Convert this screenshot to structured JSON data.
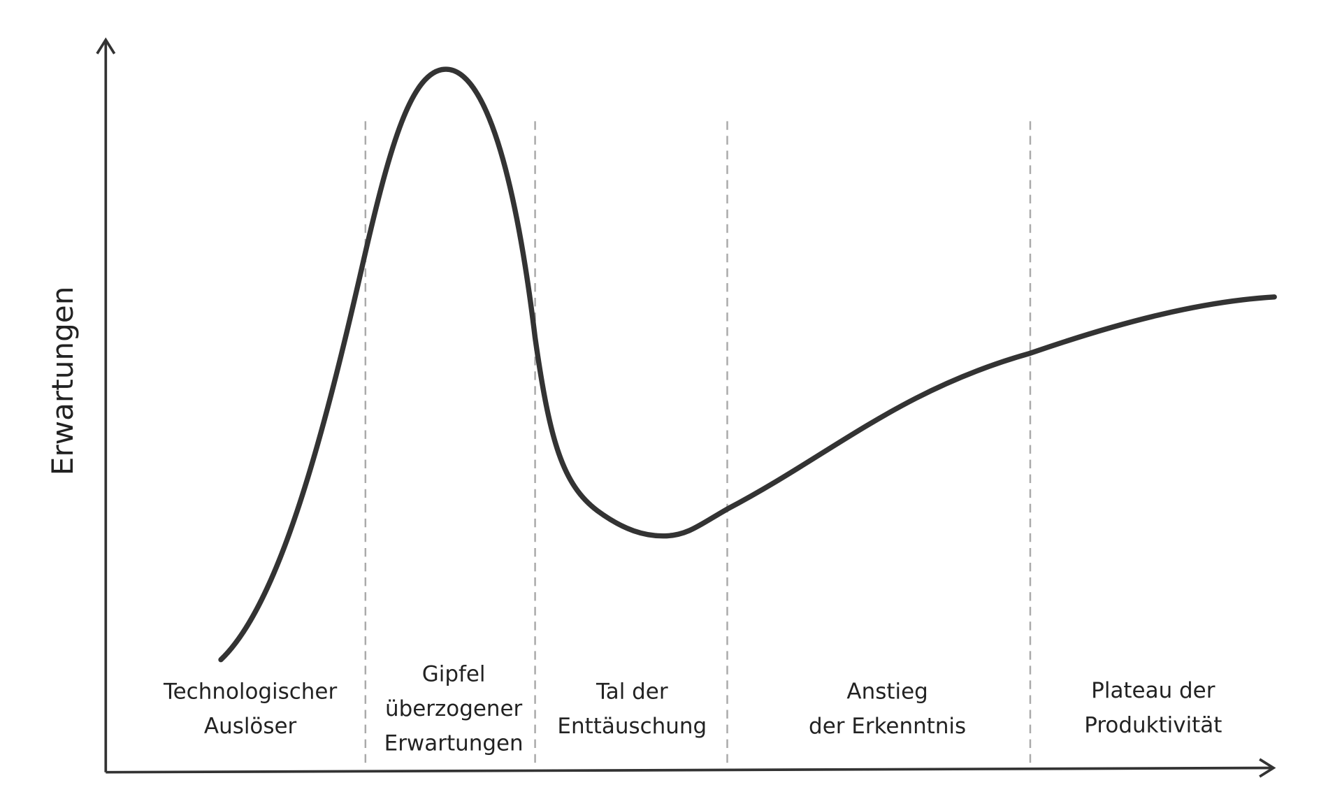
{
  "y_axis": {
    "label": "Erwartungen"
  },
  "phases": [
    {
      "lines": [
        "Technologischer",
        "Auslöser"
      ]
    },
    {
      "lines": [
        "Gipfel",
        "überzogener",
        "Erwartungen"
      ]
    },
    {
      "lines": [
        "Tal der",
        "Enttäuschung"
      ]
    },
    {
      "lines": [
        "Anstieg",
        "der Erkenntnis"
      ]
    },
    {
      "lines": [
        "Plateau der",
        "Produktivität"
      ]
    }
  ]
}
